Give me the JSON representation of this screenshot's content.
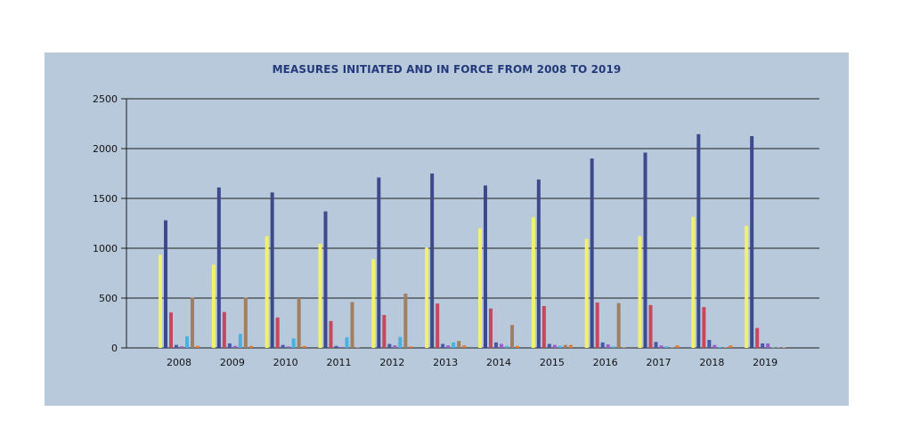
{
  "chart_data": {
    "type": "bar",
    "title": "MEASURES INITIATED AND IN FORCE FROM 2008 TO 2019",
    "xlabel": "",
    "ylabel": "",
    "ylim": [
      0,
      2500
    ],
    "yticks": [
      0,
      500,
      1000,
      1500,
      2000,
      2500
    ],
    "grid": true,
    "legend": "none",
    "categories": [
      "2008",
      "2009",
      "2010",
      "2011",
      "2012",
      "2013",
      "2014",
      "2015",
      "2016",
      "2017",
      "2018",
      "2019"
    ],
    "series": [
      {
        "color": "#f2f26a",
        "values": [
          935,
          835,
          1120,
          1045,
          890,
          1005,
          1200,
          1310,
          1095,
          1120,
          1315,
          1225
        ]
      },
      {
        "color": "#3c4a8c",
        "values": [
          1280,
          1610,
          1560,
          1370,
          1710,
          1750,
          1630,
          1690,
          1900,
          1960,
          2145,
          2125
        ]
      },
      {
        "color": "#c8475a",
        "values": [
          355,
          360,
          305,
          270,
          330,
          445,
          395,
          420,
          455,
          430,
          410,
          200
        ]
      },
      {
        "color": "#4a58a8",
        "values": [
          30,
          45,
          30,
          20,
          40,
          40,
          55,
          40,
          55,
          60,
          80,
          45
        ]
      },
      {
        "color": "#9a5cc8",
        "values": [
          15,
          20,
          15,
          10,
          25,
          25,
          40,
          30,
          35,
          25,
          30,
          45
        ]
      },
      {
        "color": "#4ab0e0",
        "values": [
          115,
          140,
          95,
          105,
          110,
          55,
          20,
          20,
          15,
          15,
          10,
          5
        ]
      },
      {
        "color": "#a08060",
        "values": [
          505,
          505,
          500,
          460,
          545,
          70,
          230,
          30,
          450,
          5,
          5,
          5
        ]
      },
      {
        "color": "#e07830",
        "values": [
          20,
          20,
          20,
          5,
          15,
          25,
          20,
          30,
          5,
          25,
          25,
          5
        ]
      }
    ]
  }
}
